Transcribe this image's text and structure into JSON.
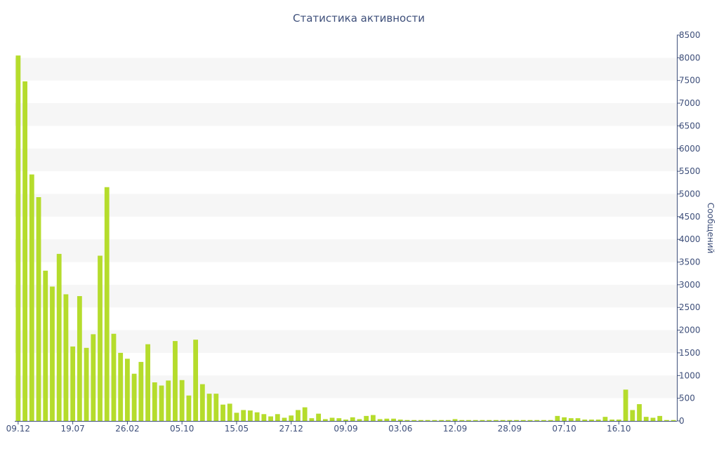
{
  "chart_data": {
    "type": "bar",
    "title": "Статистика активности",
    "ylabel": "Сообщений",
    "xlabel": "",
    "ylim": [
      0,
      8500
    ],
    "y_ticks": [
      0,
      500,
      1000,
      1500,
      2000,
      2500,
      3000,
      3500,
      4000,
      4500,
      5000,
      5500,
      6000,
      6500,
      7000,
      7500,
      8000,
      8500
    ],
    "x_tick_labels": [
      {
        "label": "09.12",
        "index": 0
      },
      {
        "label": "19.07",
        "index": 8
      },
      {
        "label": "26.02",
        "index": 16
      },
      {
        "label": "05.10",
        "index": 24
      },
      {
        "label": "15.05",
        "index": 32
      },
      {
        "label": "27.12",
        "index": 40
      },
      {
        "label": "09.09",
        "index": 48
      },
      {
        "label": "03.06",
        "index": 56
      },
      {
        "label": "12.09",
        "index": 64
      },
      {
        "label": "28.09",
        "index": 72
      },
      {
        "label": "07.10",
        "index": 80
      },
      {
        "label": "16.10",
        "index": 88
      }
    ],
    "y_axis_position": "right",
    "grid": "alternating horizontal bands",
    "bar_color": "#b5dc2c",
    "band_color": "#f6f6f6",
    "axis_color": "#3e4f7a",
    "values": [
      8050,
      7480,
      5430,
      4930,
      3310,
      2960,
      3680,
      2790,
      1640,
      2750,
      1610,
      1910,
      3640,
      5150,
      1920,
      1500,
      1370,
      1040,
      1300,
      1690,
      850,
      780,
      890,
      1760,
      900,
      560,
      1790,
      810,
      600,
      600,
      360,
      380,
      180,
      240,
      230,
      190,
      150,
      100,
      150,
      70,
      120,
      240,
      300,
      60,
      160,
      40,
      70,
      60,
      30,
      80,
      40,
      110,
      130,
      40,
      50,
      50,
      30,
      20,
      20,
      20,
      20,
      20,
      20,
      20,
      40,
      20,
      20,
      20,
      20,
      20,
      20,
      20,
      20,
      20,
      20,
      20,
      20,
      20,
      20,
      110,
      80,
      60,
      60,
      30,
      30,
      30,
      90,
      30,
      30,
      690,
      240,
      370,
      90,
      70,
      110,
      20,
      20
    ]
  }
}
